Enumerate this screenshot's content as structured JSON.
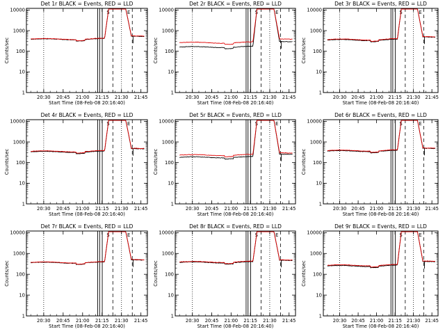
{
  "chart_data": [
    {
      "type": "line",
      "title": "Det 1r BLACK = Events, RED = LLD",
      "xlabel": "Start Time (08-Feb-08 20:16:40)",
      "ylabel": "Counts/sec",
      "ylog": true,
      "ylim": [
        1,
        12000
      ],
      "xlim": [
        "20:16:40",
        "21:50:00"
      ],
      "yticks": [
        "1",
        "10",
        "100",
        "1000",
        "10000"
      ],
      "xticks": [
        "20:30",
        "20:45",
        "21:00",
        "21:15",
        "21:30",
        "21:45"
      ],
      "flags": [
        "S",
        "E"
      ],
      "events_base": 380,
      "lld_base": 390,
      "events_post": 540,
      "lld_post": 560,
      "line_colors": {
        "events": "#000000",
        "lld": "#e00000"
      }
    },
    {
      "type": "line",
      "title": "Det 2r BLACK = Events, RED = LLD",
      "xlabel": "Start Time (08-Feb-08 20:16:40)",
      "ylabel": "Counts/sec",
      "ylog": true,
      "ylim": [
        1,
        12000
      ],
      "xlim": [
        "20:16:40",
        "21:50:00"
      ],
      "yticks": [
        "1",
        "10",
        "100",
        "1000",
        "10000"
      ],
      "xticks": [
        "20:30",
        "20:45",
        "21:00",
        "21:15",
        "21:30",
        "21:45"
      ],
      "flags": [
        "S",
        "E"
      ],
      "events_base": 160,
      "lld_base": 260,
      "events_post": 300,
      "lld_post": 400,
      "line_colors": {
        "events": "#000000",
        "lld": "#e00000"
      }
    },
    {
      "type": "line",
      "title": "Det 3r BLACK = Events, RED = LLD",
      "xlabel": "Start Time (08-Feb-08 20:16:40)",
      "ylabel": "Counts/sec",
      "ylog": true,
      "ylim": [
        1,
        12000
      ],
      "xlim": [
        "20:16:40",
        "21:50:00"
      ],
      "yticks": [
        "1",
        "10",
        "100",
        "1000",
        "10000"
      ],
      "xticks": [
        "20:30",
        "20:45",
        "21:00",
        "21:15",
        "21:30",
        "21:45"
      ],
      "flags": [
        "S",
        "E"
      ],
      "events_base": 350,
      "lld_base": 370,
      "events_post": 500,
      "lld_post": 520,
      "line_colors": {
        "events": "#000000",
        "lld": "#e00000"
      }
    },
    {
      "type": "line",
      "title": "Det 4r BLACK = Events, RED = LLD",
      "xlabel": "Start Time (08-Feb-08 20:16:40)",
      "ylabel": "Counts/sec",
      "ylog": true,
      "ylim": [
        1,
        12000
      ],
      "xlim": [
        "20:16:40",
        "21:50:00"
      ],
      "yticks": [
        "1",
        "10",
        "100",
        "1000",
        "10000"
      ],
      "xticks": [
        "20:30",
        "20:45",
        "21:00",
        "21:15",
        "21:30",
        "21:45"
      ],
      "flags": [
        "S",
        "E"
      ],
      "events_base": 330,
      "lld_base": 350,
      "events_post": 480,
      "lld_post": 500,
      "line_colors": {
        "events": "#000000",
        "lld": "#e00000"
      }
    },
    {
      "type": "line",
      "title": "Det 5r BLACK = Events, RED = LLD",
      "xlabel": "Start Time (08-Feb-08 20:16:40)",
      "ylabel": "Counts/sec",
      "ylog": true,
      "ylim": [
        1,
        12000
      ],
      "xlim": [
        "20:16:40",
        "21:50:00"
      ],
      "yticks": [
        "1",
        "10",
        "100",
        "1000",
        "10000"
      ],
      "xticks": [
        "20:30",
        "20:45",
        "21:00",
        "21:15",
        "21:30",
        "21:45"
      ],
      "flags": [
        "S",
        "E"
      ],
      "events_base": 180,
      "lld_base": 230,
      "events_post": 260,
      "lld_post": 300,
      "line_colors": {
        "events": "#000000",
        "lld": "#e00000"
      }
    },
    {
      "type": "line",
      "title": "Det 6r BLACK = Events, RED = LLD",
      "xlabel": "Start Time (08-Feb-08 20:16:40)",
      "ylabel": "Counts/sec",
      "ylog": true,
      "ylim": [
        1,
        12000
      ],
      "xlim": [
        "20:16:40",
        "21:50:00"
      ],
      "yticks": [
        "1",
        "10",
        "100",
        "1000",
        "10000"
      ],
      "xticks": [
        "20:30",
        "20:45",
        "21:00",
        "21:15",
        "21:30",
        "21:45"
      ],
      "flags": [
        "S",
        "E"
      ],
      "events_base": 360,
      "lld_base": 380,
      "events_post": 500,
      "lld_post": 520,
      "line_colors": {
        "events": "#000000",
        "lld": "#e00000"
      }
    },
    {
      "type": "line",
      "title": "Det 7r BLACK = Events, RED = LLD",
      "xlabel": "Start Time (08-Feb-08 20:16:40)",
      "ylabel": "Counts/sec",
      "ylog": true,
      "ylim": [
        1,
        12000
      ],
      "xlim": [
        "20:16:40",
        "21:50:00"
      ],
      "yticks": [
        "1",
        "10",
        "100",
        "1000",
        "10000"
      ],
      "xticks": [
        "20:30",
        "20:45",
        "21:00",
        "21:15",
        "21:30",
        "21:45"
      ],
      "flags": [
        "S",
        "E"
      ],
      "events_base": 360,
      "lld_base": 370,
      "events_post": 500,
      "lld_post": 520,
      "line_colors": {
        "events": "#000000",
        "lld": "#e00000"
      }
    },
    {
      "type": "line",
      "title": "Det 8r BLACK = Events, RED = LLD",
      "xlabel": "Start Time (08-Feb-08 20:16:40)",
      "ylabel": "Counts/sec",
      "ylog": true,
      "ylim": [
        1,
        12000
      ],
      "xlim": [
        "20:16:40",
        "21:50:00"
      ],
      "yticks": [
        "1",
        "10",
        "100",
        "1000",
        "10000"
      ],
      "xticks": [
        "20:30",
        "20:45",
        "21:00",
        "21:15",
        "21:30",
        "21:45"
      ],
      "flags": [
        "S",
        "E"
      ],
      "events_base": 370,
      "lld_base": 390,
      "events_post": 480,
      "lld_post": 500,
      "line_colors": {
        "events": "#000000",
        "lld": "#e00000"
      }
    },
    {
      "type": "line",
      "title": "Det 9r BLACK = Events, RED = LLD",
      "xlabel": "Start Time (08-Feb-08 20:16:40)",
      "ylabel": "Counts/sec",
      "ylog": true,
      "ylim": [
        1,
        12000
      ],
      "xlim": [
        "20:16:40",
        "21:50:00"
      ],
      "yticks": [
        "1",
        "10",
        "100",
        "1000",
        "10000"
      ],
      "xticks": [
        "20:30",
        "20:45",
        "21:00",
        "21:15",
        "21:30",
        "21:45"
      ],
      "flags": [
        "S",
        "E"
      ],
      "events_base": 250,
      "lld_base": 270,
      "events_post": 420,
      "lld_post": 440,
      "line_colors": {
        "events": "#000000",
        "lld": "#e00000"
      }
    }
  ]
}
